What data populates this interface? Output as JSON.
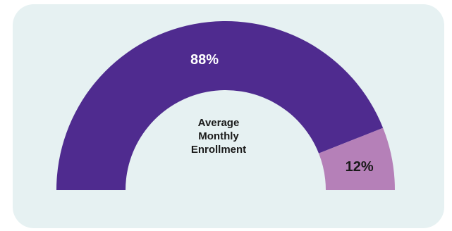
{
  "chart_data": {
    "type": "pie",
    "variant": "semicircle-gauge",
    "center_label": "Average\nMonthly\nEnrollment",
    "segments": [
      {
        "label": "88%",
        "value": 88,
        "color": "#4f2b8f"
      },
      {
        "label": "12%",
        "value": 12,
        "color": "#b580b8"
      }
    ]
  },
  "colors": {
    "card_background": "#e6f1f2",
    "primary_segment": "#4f2b8f",
    "secondary_segment": "#b580b8"
  }
}
